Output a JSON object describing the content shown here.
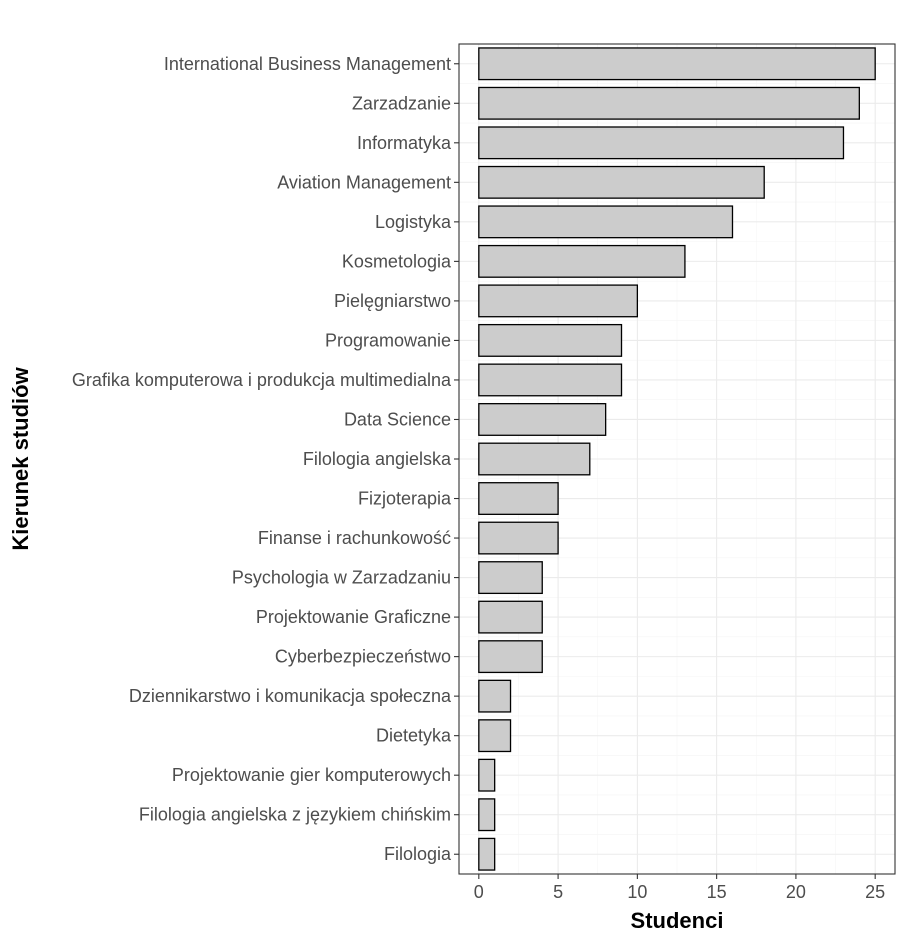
{
  "chart_data": {
    "type": "bar",
    "orientation": "horizontal",
    "categories": [
      "International Business Management",
      "Zarzadzanie",
      "Informatyka",
      "Aviation Management",
      "Logistyka",
      "Kosmetologia",
      "Pielęgniarstwo",
      "Programowanie",
      "Grafika komputerowa i produkcja multimedialna",
      "Data Science",
      "Filologia angielska",
      "Fizjoterapia",
      "Finanse i rachunkowość",
      "Psychologia w Zarzadzaniu",
      "Projektowanie Graficzne",
      "Cyberbezpieczeństwo",
      "Dziennikarstwo i komunikacja społeczna",
      "Dietetyka",
      "Projektowanie gier komputerowych",
      "Filologia angielska z językiem chińskim",
      "Filologia"
    ],
    "values": [
      25,
      24,
      23,
      18,
      16,
      13,
      10,
      9,
      9,
      8,
      7,
      5,
      5,
      4,
      4,
      4,
      2,
      2,
      1,
      1,
      1
    ],
    "xlabel": "Studenci",
    "ylabel": "Kierunek studiów",
    "xlim": [
      -1.25,
      26.25
    ],
    "xticks": [
      0,
      5,
      10,
      15,
      20,
      25
    ],
    "grid": true,
    "legend": "none",
    "bar_fill": "#cccccc",
    "bar_stroke": "#000000"
  }
}
